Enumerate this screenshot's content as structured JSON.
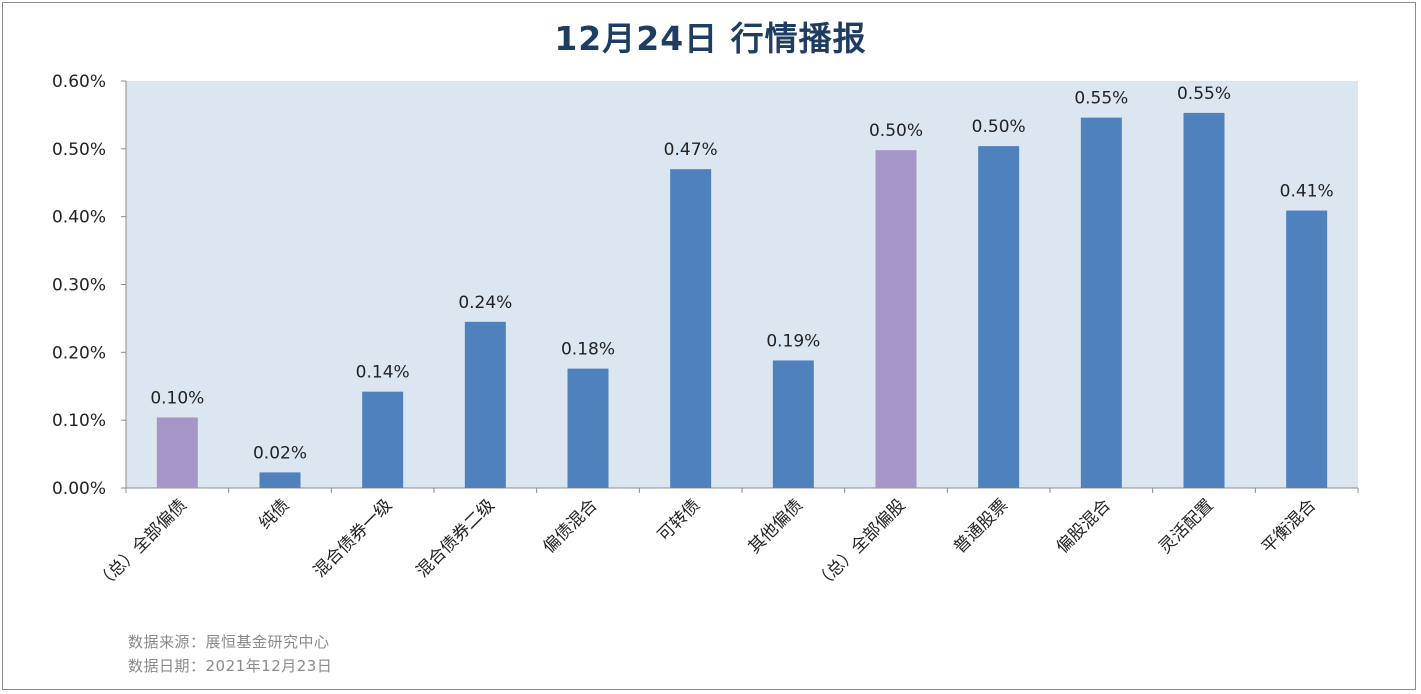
{
  "title": "12月24日  行情播报",
  "footer": {
    "source": "数据来源：展恒基金研究中心",
    "date": "数据日期：2021年12月23日"
  },
  "colors": {
    "plot_bg": "#dce6f1",
    "bar_default": "#4f81bd",
    "bar_highlight": "#a696c8",
    "title": "#1f3d63"
  },
  "chart_data": {
    "type": "bar",
    "title": "12月24日  行情播报",
    "xlabel": "",
    "ylabel": "",
    "ylim": [
      0,
      0.6
    ],
    "y_ticks": [
      "0.00%",
      "0.10%",
      "0.20%",
      "0.30%",
      "0.40%",
      "0.50%",
      "0.60%"
    ],
    "grid": false,
    "categories": [
      "（总）全部偏债",
      "纯债",
      "混合债券一级",
      "混合债券二级",
      "偏债混合",
      "可转债",
      "其他偏债",
      "（总）全部偏股",
      "普通股票",
      "偏股混合",
      "灵活配置",
      "平衡混合"
    ],
    "values": [
      0.104,
      0.023,
      0.142,
      0.245,
      0.176,
      0.47,
      0.188,
      0.498,
      0.504,
      0.546,
      0.553,
      0.409
    ],
    "data_labels": [
      "0.10%",
      "0.02%",
      "0.14%",
      "0.24%",
      "0.18%",
      "0.47%",
      "0.19%",
      "0.50%",
      "0.50%",
      "0.55%",
      "0.55%",
      "0.41%"
    ],
    "highlight": [
      true,
      false,
      false,
      false,
      false,
      false,
      false,
      true,
      false,
      false,
      false,
      false
    ]
  }
}
